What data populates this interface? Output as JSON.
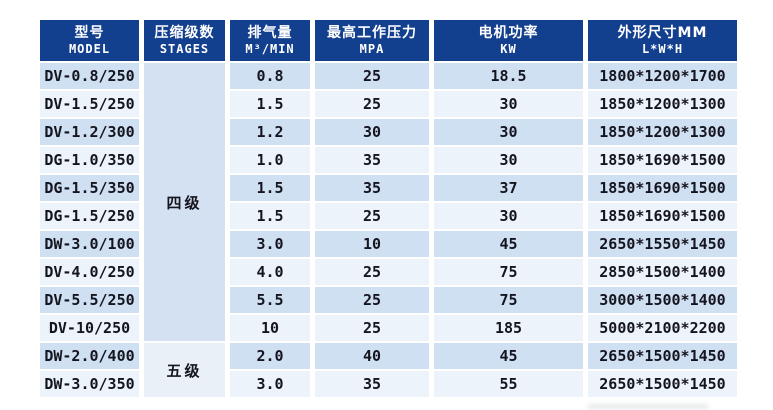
{
  "colors": {
    "header_bg": "#123f8e",
    "header_text": "#ffffff",
    "row_blue": "#cfe0f2",
    "row_light": "#edf3fa",
    "stage_four_bg": "#d3e1f2",
    "stage_five_bg": "#e9f0f8",
    "body_text": "#15151f"
  },
  "chart_data": {
    "type": "table",
    "columns": [
      {
        "zh": "型号",
        "en": "MODEL"
      },
      {
        "zh": "压缩级数",
        "en": "STAGES"
      },
      {
        "zh": "排气量",
        "en": "M³/MIN"
      },
      {
        "zh": "最高工作压力",
        "en": "MPA"
      },
      {
        "zh": "电机功率",
        "en": "KW"
      },
      {
        "zh": "外形尺寸MM",
        "en": "L*W*H"
      }
    ],
    "stage_groups": [
      {
        "label": "四级",
        "row_span": 10
      },
      {
        "label": "五级",
        "row_span": 2
      }
    ],
    "rows": [
      {
        "model": "DV-0.8/250",
        "capacity": "0.8",
        "pressure": "25",
        "power": "18.5",
        "dimensions": "1800*1200*1700"
      },
      {
        "model": "DV-1.5/250",
        "capacity": "1.5",
        "pressure": "25",
        "power": "30",
        "dimensions": "1850*1200*1300"
      },
      {
        "model": "DV-1.2/300",
        "capacity": "1.2",
        "pressure": "30",
        "power": "30",
        "dimensions": "1850*1200*1300"
      },
      {
        "model": "DG-1.0/350",
        "capacity": "1.0",
        "pressure": "35",
        "power": "30",
        "dimensions": "1850*1690*1500"
      },
      {
        "model": "DG-1.5/350",
        "capacity": "1.5",
        "pressure": "35",
        "power": "37",
        "dimensions": "1850*1690*1500"
      },
      {
        "model": "DG-1.5/250",
        "capacity": "1.5",
        "pressure": "25",
        "power": "30",
        "dimensions": "1850*1690*1500"
      },
      {
        "model": "DW-3.0/100",
        "capacity": "3.0",
        "pressure": "10",
        "power": "45",
        "dimensions": "2650*1550*1450"
      },
      {
        "model": "DV-4.0/250",
        "capacity": "4.0",
        "pressure": "25",
        "power": "75",
        "dimensions": "2850*1500*1400"
      },
      {
        "model": "DV-5.5/250",
        "capacity": "5.5",
        "pressure": "25",
        "power": "75",
        "dimensions": "3000*1500*1400"
      },
      {
        "model": "DV-10/250",
        "capacity": "10",
        "pressure": "25",
        "power": "185",
        "dimensions": "5000*2100*2200"
      },
      {
        "model": "DW-2.0/400",
        "capacity": "2.0",
        "pressure": "40",
        "power": "45",
        "dimensions": "2650*1500*1450"
      },
      {
        "model": "DW-3.0/350",
        "capacity": "3.0",
        "pressure": "35",
        "power": "55",
        "dimensions": "2650*1500*1450"
      }
    ]
  }
}
